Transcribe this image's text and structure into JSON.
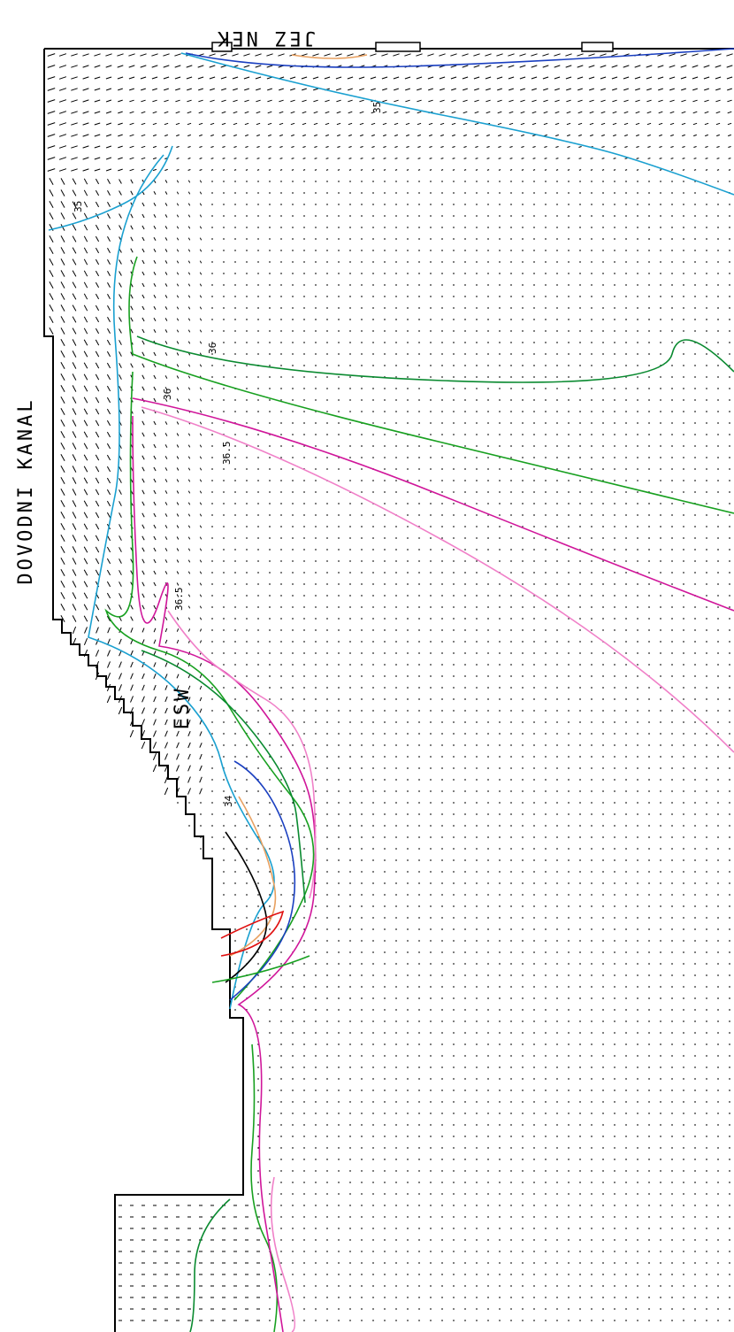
{
  "header": {
    "top_label": "JEZ NEK"
  },
  "labels": {
    "channel": "DOVODNI KANAL",
    "outlet": "ESW"
  },
  "contour_labels": [
    "35",
    "35",
    "36",
    "36",
    "36.5",
    "36.5",
    "34"
  ]
}
